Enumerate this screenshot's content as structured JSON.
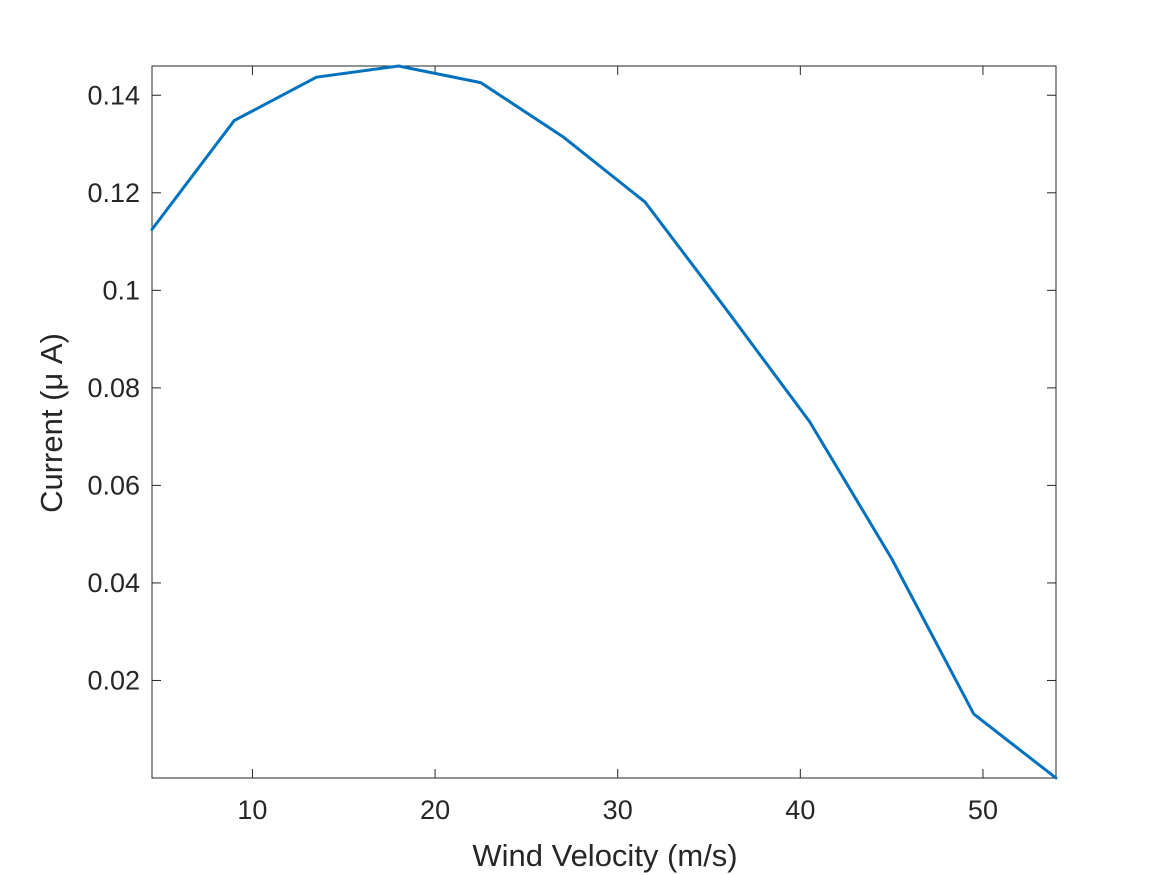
{
  "chart_data": {
    "type": "line",
    "title": "",
    "xlabel": "Wind Velocity (m/s)",
    "ylabel": "Current (μ A)",
    "xlim": [
      4.5,
      54
    ],
    "ylim": [
      0,
      0.146
    ],
    "xticks": [
      10,
      20,
      30,
      40,
      50
    ],
    "xtick_labels": [
      "10",
      "20",
      "30",
      "40",
      "50"
    ],
    "yticks": [
      0.02,
      0.04,
      0.06,
      0.08,
      0.1,
      0.12,
      0.14
    ],
    "ytick_labels": [
      "0.02",
      "0.04",
      "0.06",
      "0.08",
      "0.1",
      "0.12",
      "0.14"
    ],
    "grid": false,
    "box": true,
    "series": [
      {
        "color": "#0072BD",
        "x": [
          4.5,
          9,
          13.5,
          18,
          22.5,
          27,
          31.5,
          36,
          40.5,
          45,
          49.5,
          54
        ],
        "y": [
          0.1125,
          0.1348,
          0.1437,
          0.146,
          0.1426,
          0.1315,
          0.1181,
          0.0958,
          0.0731,
          0.045,
          0.0131,
          0.0
        ]
      }
    ]
  }
}
